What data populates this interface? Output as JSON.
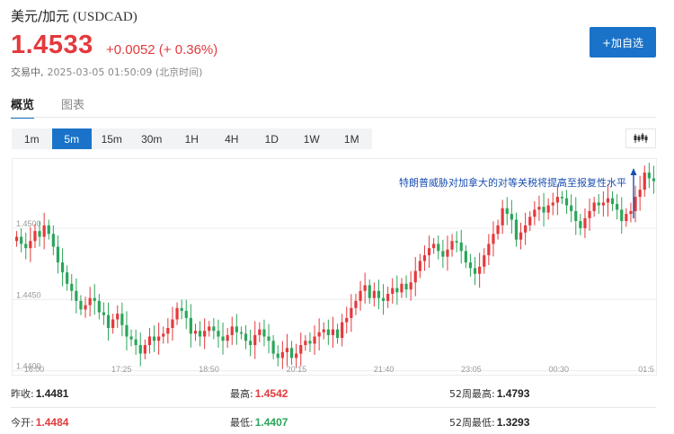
{
  "header": {
    "name": "美元/加元",
    "symbol": "(USDCAD)",
    "price": "1.4533",
    "change": "+0.0052 (+ 0.36%)",
    "status": "交易中,",
    "timestamp": "2025-03-05 01:50:09 (北京时间)",
    "add_button": "+加自选"
  },
  "tabs": [
    {
      "label": "概览",
      "active": true
    },
    {
      "label": "图表",
      "active": false
    }
  ],
  "periods": [
    "1m",
    "5m",
    "15m",
    "30m",
    "1H",
    "4H",
    "1D",
    "1W",
    "1M"
  ],
  "active_period": "5m",
  "chart_type_icon": "candlestick-icon",
  "colors": {
    "up": "#e4393c",
    "down": "#2ca55a",
    "accent": "#1a73c8"
  },
  "chart_data": {
    "type": "candlestick",
    "y_labels": [
      "1.4500",
      "1.4450",
      "1.4400"
    ],
    "y_values": [
      1.45,
      1.445,
      1.44
    ],
    "ylim": [
      1.4401,
      1.4546
    ],
    "x_labels": [
      "16:00",
      "17:25",
      "18:50",
      "20:15",
      "21:40",
      "23:05",
      "00:30",
      "01:5"
    ],
    "annotation": "特朗普威胁对加拿大的对等关税将提高至报复性水平",
    "closes": [
      1.4494,
      1.4489,
      1.4486,
      1.4491,
      1.4498,
      1.4494,
      1.4502,
      1.4496,
      1.4487,
      1.4476,
      1.4469,
      1.4461,
      1.4456,
      1.4449,
      1.4443,
      1.4446,
      1.4451,
      1.4449,
      1.4441,
      1.4439,
      1.443,
      1.4436,
      1.444,
      1.4432,
      1.4424,
      1.4422,
      1.4418,
      1.4412,
      1.4418,
      1.4424,
      1.4421,
      1.4424,
      1.4426,
      1.443,
      1.4436,
      1.4444,
      1.4442,
      1.4437,
      1.4426,
      1.4428,
      1.4424,
      1.4428,
      1.4431,
      1.4428,
      1.4424,
      1.4421,
      1.4425,
      1.4431,
      1.4427,
      1.4426,
      1.4421,
      1.4418,
      1.4425,
      1.4429,
      1.4424,
      1.4421,
      1.4412,
      1.4409,
      1.4413,
      1.4416,
      1.4409,
      1.4412,
      1.4418,
      1.4421,
      1.4419,
      1.4424,
      1.4427,
      1.4429,
      1.4425,
      1.4429,
      1.4423,
      1.4434,
      1.4437,
      1.4444,
      1.4449,
      1.4456,
      1.446,
      1.4451,
      1.4456,
      1.4451,
      1.4449,
      1.4454,
      1.4458,
      1.4455,
      1.4461,
      1.4457,
      1.4462,
      1.447,
      1.4477,
      1.4481,
      1.4486,
      1.4489,
      1.4484,
      1.448,
      1.4485,
      1.4491,
      1.449,
      1.4484,
      1.4476,
      1.4472,
      1.4468,
      1.4473,
      1.4481,
      1.4489,
      1.4496,
      1.4502,
      1.4514,
      1.451,
      1.4506,
      1.4492,
      1.4497,
      1.4502,
      1.4508,
      1.4513,
      1.4515,
      1.4511,
      1.4516,
      1.4518,
      1.4522,
      1.4521,
      1.4516,
      1.4512,
      1.4505,
      1.45,
      1.4507,
      1.4512,
      1.4518,
      1.4516,
      1.4518,
      1.4521,
      1.4517,
      1.4513,
      1.4505,
      1.451,
      1.4512,
      1.4522,
      1.4527,
      1.4539,
      1.4535,
      1.4533
    ]
  },
  "stats": [
    {
      "label": "昨收:",
      "value": "1.4481",
      "tone": "dark"
    },
    {
      "label": "最高:",
      "value": "1.4542",
      "tone": "red"
    },
    {
      "label": "52周最高:",
      "value": "1.4793",
      "tone": "dark"
    },
    {
      "label": "今开:",
      "value": "1.4484",
      "tone": "red"
    },
    {
      "label": "最低:",
      "value": "1.4407",
      "tone": "green"
    },
    {
      "label": "52周最低:",
      "value": "1.3293",
      "tone": "dark"
    }
  ]
}
